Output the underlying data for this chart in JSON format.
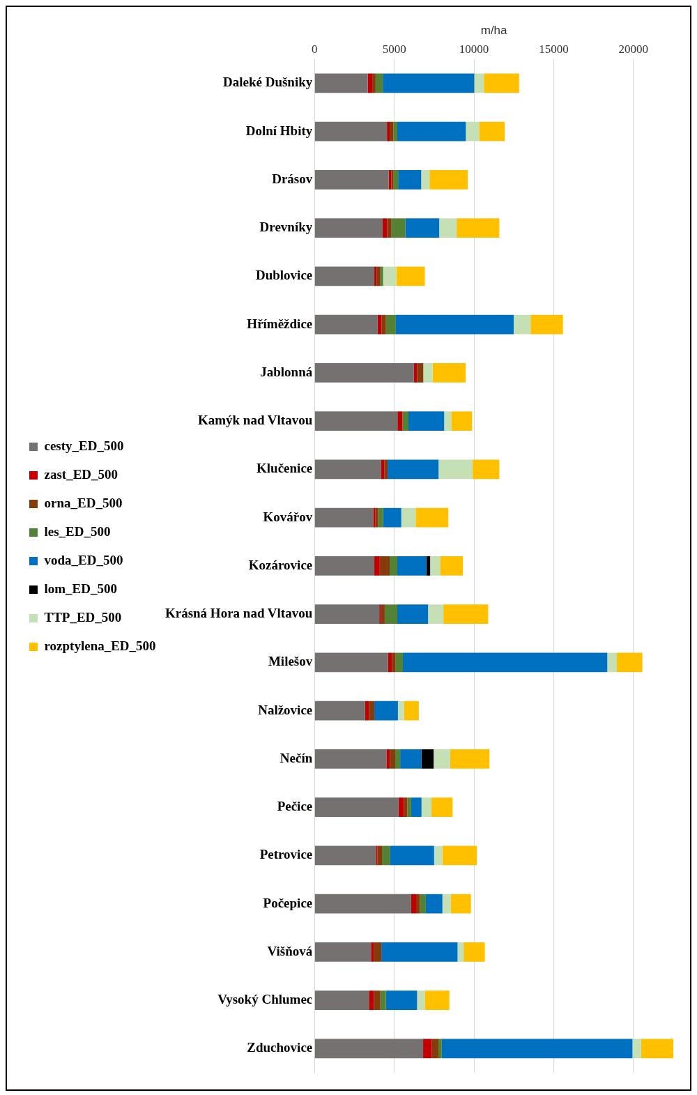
{
  "chart_data": {
    "type": "bar",
    "orientation": "horizontal",
    "stacked": true,
    "xlabel": "m/ha",
    "xlim": [
      0,
      22500
    ],
    "xticks": [
      0,
      5000,
      10000,
      15000,
      20000
    ],
    "grid": "x",
    "legend": "left",
    "categories": [
      "Daleké Dušniky",
      "Dolní Hbity",
      "Drásov",
      "Drevníky",
      "Dublovice",
      "Hříměždice",
      "Jablonná",
      "Kamýk nad Vltavou",
      "Klučenice",
      "Kovářov",
      "Kozárovice",
      "Krásná Hora nad Vltavou",
      "Milešov",
      "Nalžovice",
      "Nečín",
      "Pečice",
      "Petrovice",
      "Počepice",
      "Višňová",
      "Vysoký Chlumec",
      "Zduchovice"
    ],
    "series": [
      {
        "name": "cesty_ED_500",
        "color": "#767171",
        "values": [
          3340,
          4540,
          4650,
          4270,
          3750,
          3960,
          6230,
          5200,
          4160,
          3680,
          3750,
          4060,
          4610,
          3170,
          4510,
          5270,
          3850,
          6060,
          3540,
          3410,
          6810
        ]
      },
      {
        "name": "zast_ED_500",
        "color": "#c00000",
        "values": [
          280,
          170,
          170,
          280,
          140,
          240,
          210,
          310,
          210,
          140,
          340,
          100,
          240,
          240,
          210,
          340,
          100,
          310,
          170,
          310,
          550
        ]
      },
      {
        "name": "orna_ED_500",
        "color": "#843c0c",
        "values": [
          210,
          240,
          140,
          280,
          240,
          280,
          380,
          0,
          210,
          170,
          620,
          240,
          240,
          340,
          340,
          210,
          280,
          240,
          480,
          410,
          410
        ]
      },
      {
        "name": "les_ED_500",
        "color": "#548235",
        "values": [
          450,
          240,
          280,
          860,
          170,
          620,
          0,
          380,
          0,
          310,
          480,
          790,
          450,
          0,
          310,
          240,
          520,
          370,
          0,
          340,
          210
        ]
      },
      {
        "name": "voda_ED_500",
        "color": "#0070c0",
        "values": [
          5740,
          4300,
          1450,
          2130,
          0,
          7390,
          0,
          2240,
          3200,
          1140,
          1820,
          1930,
          12820,
          1480,
          1340,
          650,
          2750,
          1040,
          4780,
          1960,
          11960
        ]
      },
      {
        "name": "lom_ED_500",
        "color": "#000000",
        "values": [
          0,
          0,
          0,
          0,
          0,
          0,
          0,
          0,
          0,
          0,
          240,
          0,
          0,
          0,
          760,
          0,
          0,
          0,
          0,
          0,
          0
        ]
      },
      {
        "name": "TTP_ED_500",
        "color": "#c5e0b4",
        "values": [
          600,
          830,
          520,
          1090,
          830,
          1060,
          590,
          440,
          2120,
          900,
          620,
          960,
          600,
          380,
          1030,
          620,
          520,
          520,
          380,
          480,
          530
        ]
      },
      {
        "name": "rozptylena_ED_500",
        "color": "#ffc000",
        "values": [
          2210,
          1610,
          2400,
          2680,
          1790,
          2030,
          2070,
          1310,
          1690,
          2050,
          1430,
          2810,
          1600,
          930,
          2470,
          1330,
          2160,
          1270,
          1330,
          1550,
          2050
        ]
      }
    ]
  }
}
